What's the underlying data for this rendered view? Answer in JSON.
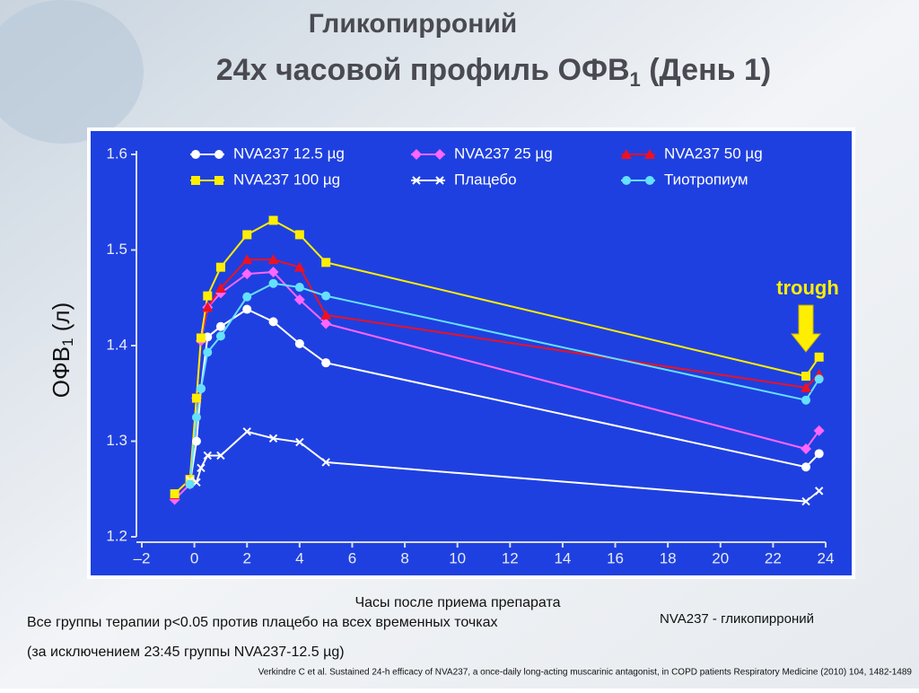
{
  "slide": {
    "title": "Гликопирроний",
    "subtitle": [
      "24х часовой профиль ОФВ",
      "1",
      " (День 1)"
    ],
    "note_lines": [
      "Все группы терапии p<0.05 против плацебо на всех временных точках",
      "(за исключением 23:45 группы NVA237-12.5 µg)"
    ],
    "definition": "NVA237 - гликопирроний",
    "reference": "Verkindre C et al. Sustained 24-h efficacy of NVA237, a once-daily long-acting muscarinic antagonist, in COPD patients Respiratory Medicine (2010) 104, 1482-1489"
  },
  "chart_data": {
    "type": "line",
    "xlabel": "Часы после приема препарата",
    "ylabel": [
      "ОФВ",
      "1",
      " (л)"
    ],
    "annotation": "trough",
    "x": [
      -0.75,
      -0.17,
      0.08,
      0.25,
      0.5,
      1,
      2,
      3,
      4,
      5,
      23.25,
      23.75
    ],
    "xlim": [
      -2,
      24
    ],
    "xticks": [
      {
        "value": -2,
        "label": "–2"
      },
      0,
      2,
      4,
      6,
      8,
      10,
      12,
      14,
      16,
      18,
      20,
      22,
      24
    ],
    "ylim": [
      1.2,
      1.6
    ],
    "yticks": [
      1.2,
      1.3,
      1.4,
      1.5,
      1.6
    ],
    "series": [
      {
        "name": "NVA237 12.5 µg",
        "color": "#ffffff",
        "marker": "circle",
        "values": [
          null,
          1.255,
          1.3,
          1.355,
          1.409,
          1.42,
          1.438,
          1.425,
          1.402,
          1.382,
          1.273,
          1.287
        ]
      },
      {
        "name": "NVA237 25 µg",
        "color": "#ff66ff",
        "marker": "diamond",
        "values": [
          1.239,
          1.255,
          1.345,
          1.405,
          1.44,
          1.455,
          1.475,
          1.477,
          1.448,
          1.423,
          1.292,
          1.311
        ]
      },
      {
        "name": "NVA237 50 µg",
        "color": "#ee1122",
        "marker": "triangle",
        "values": [
          1.244,
          1.26,
          1.345,
          1.408,
          1.44,
          1.46,
          1.49,
          1.49,
          1.482,
          1.432,
          1.356,
          1.37
        ]
      },
      {
        "name": "NVA237 100 µg",
        "color": "#ffee00",
        "marker": "square",
        "values": [
          1.245,
          1.26,
          1.345,
          1.408,
          1.452,
          1.482,
          1.516,
          1.531,
          1.516,
          1.487,
          1.368,
          1.388
        ]
      },
      {
        "name": "Плацебо",
        "color": "#ffffff",
        "marker": "x",
        "values": [
          null,
          1.259,
          1.257,
          1.272,
          1.285,
          1.285,
          1.31,
          1.303,
          1.299,
          1.278,
          1.237,
          1.248
        ]
      },
      {
        "name": "Тиотропиум",
        "color": "#66e0ff",
        "marker": "circle",
        "values": [
          null,
          1.255,
          1.325,
          1.355,
          1.393,
          1.41,
          1.451,
          1.465,
          1.461,
          1.452,
          1.343,
          1.365
        ]
      }
    ]
  }
}
